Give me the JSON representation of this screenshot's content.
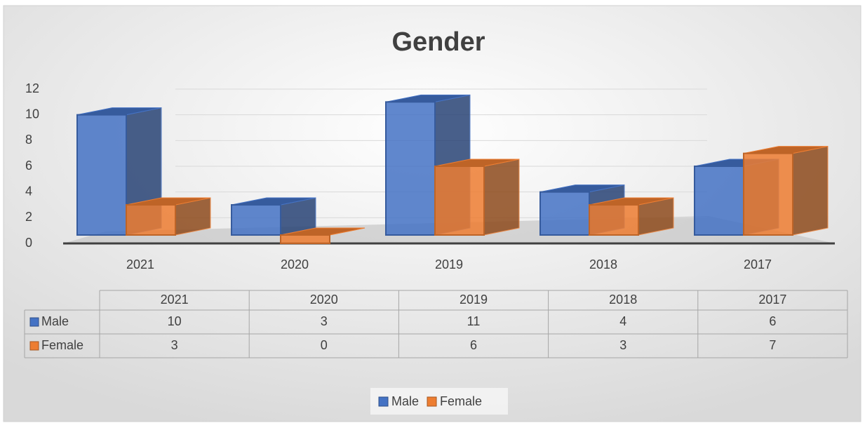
{
  "chart_data": {
    "type": "bar",
    "title": "Gender",
    "categories": [
      "2021",
      "2020",
      "2019",
      "2018",
      "2017"
    ],
    "series": [
      {
        "name": "Male",
        "color": "#4472c4",
        "values": [
          10,
          3,
          11,
          4,
          6
        ]
      },
      {
        "name": "Female",
        "color": "#ed7d31",
        "values": [
          3,
          0,
          6,
          3,
          7
        ]
      }
    ],
    "ylim": [
      0,
      12
    ],
    "yticks": [
      0,
      2,
      4,
      6,
      8,
      10,
      12
    ],
    "grid": true,
    "legend": "bottom",
    "data_table": true
  }
}
